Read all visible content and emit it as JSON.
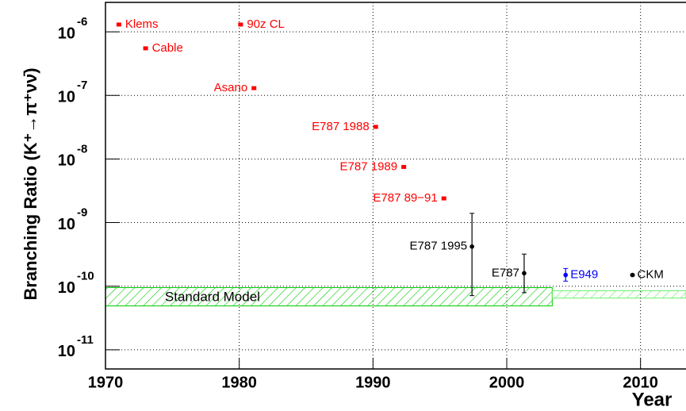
{
  "chart_data": {
    "type": "scatter",
    "y_label": "Branching Ratio (K⁺→π⁺νν̄)",
    "x_label": "Year",
    "log_y": true,
    "grid": true,
    "xlim": [
      1970,
      2013.4
    ],
    "ylim": [
      5e-12,
      2.9e-06
    ],
    "xticks": [
      1970,
      1980,
      1990,
      2000,
      2010
    ],
    "yticks": [
      {
        "value": 1e-11,
        "label": "10",
        "sup": "-11"
      },
      {
        "value": 1e-10,
        "label": "10",
        "sup": "-10"
      },
      {
        "value": 1e-09,
        "label": "10",
        "sup": "-9"
      },
      {
        "value": 1e-08,
        "label": "10",
        "sup": "-8"
      },
      {
        "value": 1e-07,
        "label": "10",
        "sup": "-7"
      },
      {
        "value": 1e-06,
        "label": "10",
        "sup": "-6"
      }
    ],
    "limits": [
      {
        "label": "Klems",
        "x": 1971.0,
        "y": 1.3e-06,
        "side": "right",
        "color": "#ff0000"
      },
      {
        "label": "90z CL",
        "x": 1980.1,
        "y": 1.3e-06,
        "side": "right",
        "color": "#ff0000"
      },
      {
        "label": "Cable",
        "x": 1973.0,
        "y": 5.5e-07,
        "side": "right",
        "color": "#ff0000"
      },
      {
        "label": "Asano",
        "x": 1981.1,
        "y": 1.3e-07,
        "side": "left",
        "color": "#ff0000"
      },
      {
        "label": "E787 1988",
        "x": 1990.2,
        "y": 3.2e-08,
        "side": "left",
        "color": "#ff0000"
      },
      {
        "label": "E787 1989",
        "x": 1992.3,
        "y": 7.5e-09,
        "side": "left",
        "color": "#ff0000"
      },
      {
        "label": "E787 89−91",
        "x": 1995.3,
        "y": 2.4e-09,
        "side": "left",
        "color": "#ff0000"
      }
    ],
    "measurements": [
      {
        "label": "E787 1995",
        "x": 1997.4,
        "y": 4.2e-10,
        "y_low": 7.1e-11,
        "y_high": 1.4e-09,
        "side": "left",
        "color": "#000000"
      },
      {
        "label": "E787",
        "x": 2001.3,
        "y": 1.6e-10,
        "y_low": 7.9e-11,
        "y_high": 3.2e-10,
        "side": "left",
        "color": "#000000"
      },
      {
        "label": "E949",
        "x": 2004.4,
        "y": 1.5e-10,
        "y_low": 1.2e-10,
        "y_high": 1.9e-10,
        "side": "right",
        "color": "#0000ff"
      },
      {
        "label": "CKM",
        "x": 2009.4,
        "y": 1.5e-10,
        "y_low": 1.45e-10,
        "y_high": 1.55e-10,
        "side": "right",
        "color": "#000000"
      }
    ],
    "band": {
      "label": "Standard Model",
      "x": [
        1970,
        2003.4
      ],
      "y": [
        4.9e-11,
        9.5e-11
      ],
      "color": "#00cc00"
    },
    "band_extension": {
      "x": [
        2003.4,
        2013.4
      ],
      "y": [
        6.5e-11,
        8.5e-11
      ],
      "color": "#66ee66"
    }
  }
}
